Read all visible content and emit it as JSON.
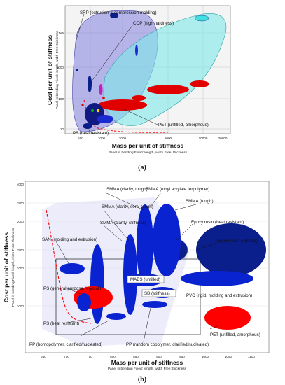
{
  "chart_data": [
    {
      "panel": "(a)",
      "type": "scatter",
      "xlabel": "Mass per unit of stiffness",
      "xsub": "Panel in bending   Fixed: length, width   Free: thickness",
      "ylabel": "Cost per unit of stiffness",
      "ysub": "Panel in bending   Fixed: length, width   Free: thickness",
      "x_scale": "log",
      "y_scale": "log",
      "x_ticks": [
        "500",
        "1000",
        "2000",
        "5000",
        "10000",
        "20000"
      ],
      "y_ticks": [
        "1e5",
        "1000",
        "100",
        "10",
        "1"
      ],
      "annotations": [
        "SRP (extrusion & compression molding)",
        "COP (high hardness)",
        "PET (unfilled, amorphous)",
        "PS (heat resistant)"
      ]
    },
    {
      "panel": "(b)",
      "type": "scatter",
      "xlabel": "Mass per unit of stiffness",
      "xsub": "Panel in bending   Fixed: length, width   Free: thickness",
      "ylabel": "Cost per unit of stiffness",
      "ysub": "Panel in bending   Fixed: length, width   Free: thickness",
      "x_ticks": [
        "650",
        "700",
        "750",
        "800",
        "850",
        "900",
        "950",
        "1000",
        "1050",
        "1100"
      ],
      "y_ticks": [
        "4000",
        "3500",
        "3000",
        "2500",
        "2000",
        "1500",
        "1000"
      ],
      "annotations": [
        "SMMA (clarity, tough)",
        "SMMA (ethyl acrylate terpolymer)",
        "SMMA (tough)",
        "SMMA (clarity, semi-tough)",
        "SMMA (clarity, stiffness)",
        "Epoxy resin (heat resistant)",
        "Epoxy resin (unfilled)",
        "SAN (molding and extrusion)",
        "PS (general purpose, 'crystal')",
        "MABS (unfilled)",
        "SB (stiffness)",
        "PVC (rigid, molding and extrusion)",
        "PS (heat resistant)",
        "PET (unfilled, amorphous)",
        "PP (homopolymer, clarified/nucleated)",
        "PP (random copolymer, clarified/nucleated)"
      ]
    }
  ],
  "captions": {
    "a": "(a)",
    "b": "(b)"
  },
  "colors": {
    "dark_blue": "#0a1e8c",
    "red": "#ff0000",
    "cyan": "#40e0e0",
    "lavender": "#8080e0"
  }
}
